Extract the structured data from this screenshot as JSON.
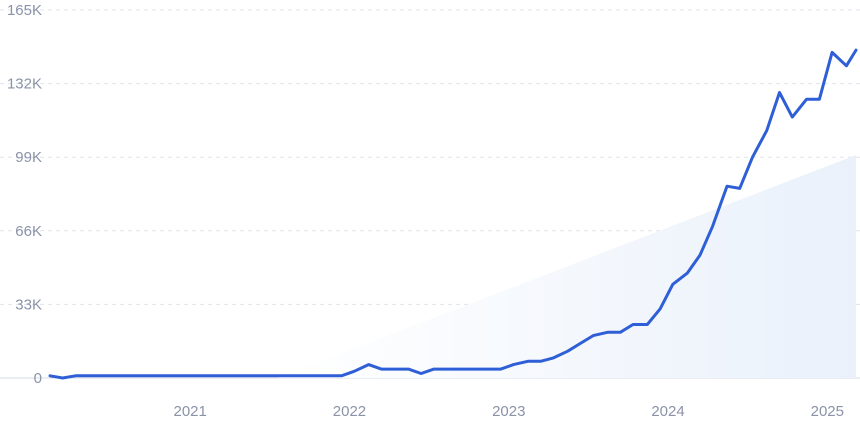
{
  "chart_data": {
    "type": "line",
    "y_ticks": [
      {
        "value": 0,
        "label": "0"
      },
      {
        "value": 33000,
        "label": "33K"
      },
      {
        "value": 66000,
        "label": "66K"
      },
      {
        "value": 99000,
        "label": "99K"
      },
      {
        "value": 132000,
        "label": "132K"
      },
      {
        "value": 165000,
        "label": "165K"
      }
    ],
    "x_ticks": [
      {
        "value": 2021.0,
        "label": "2021"
      },
      {
        "value": 2022.0,
        "label": "2022"
      },
      {
        "value": 2023.0,
        "label": "2023"
      },
      {
        "value": 2024.0,
        "label": "2024"
      },
      {
        "value": 2025.0,
        "label": "2025"
      }
    ],
    "xlim": [
      2020.12,
      2025.18
    ],
    "ylim": [
      0,
      165000
    ],
    "grid": true,
    "colors": {
      "line": "#2f5fd6",
      "area_start": "#ffffff",
      "area_end": "#eaf1fb",
      "grid": "#dfe3ea",
      "text": "#8a93a8"
    },
    "trend_area": {
      "x": [
        2021.55,
        2025.18
      ],
      "y": [
        0,
        100000
      ]
    },
    "series": [
      {
        "x": [
          2020.12,
          2020.2,
          2020.28,
          2020.37,
          2020.45,
          2020.53,
          2020.62,
          2020.7,
          2020.78,
          2020.87,
          2020.95,
          2021.03,
          2021.12,
          2021.2,
          2021.28,
          2021.37,
          2021.45,
          2021.53,
          2021.62,
          2021.7,
          2021.78,
          2021.87,
          2021.95,
          2022.03,
          2022.12,
          2022.2,
          2022.28,
          2022.37,
          2022.45,
          2022.53,
          2022.62,
          2022.7,
          2022.78,
          2022.87,
          2022.95,
          2023.03,
          2023.12,
          2023.2,
          2023.28,
          2023.37,
          2023.45,
          2023.53,
          2023.62,
          2023.7,
          2023.78,
          2023.87,
          2023.95,
          2024.03,
          2024.12,
          2024.2,
          2024.28,
          2024.37,
          2024.45,
          2024.53,
          2024.62,
          2024.7,
          2024.78,
          2024.87,
          2024.95,
          2025.03,
          2025.12,
          2025.18
        ],
        "y": [
          1000,
          0,
          1000,
          1000,
          1000,
          1000,
          1000,
          1000,
          1000,
          1000,
          1000,
          1000,
          1000,
          1000,
          1000,
          1000,
          1000,
          1000,
          1000,
          1000,
          1000,
          1000,
          1000,
          3000,
          6000,
          4000,
          4000,
          4000,
          2000,
          4000,
          4000,
          4000,
          4000,
          4000,
          4000,
          6000,
          7500,
          7500,
          9000,
          12000,
          15500,
          19000,
          20500,
          20500,
          24000,
          24000,
          31000,
          42000,
          47000,
          55000,
          68000,
          86000,
          85000,
          99000,
          111000,
          128000,
          117000,
          125000,
          125000,
          146000,
          140000,
          147000
        ]
      }
    ]
  }
}
